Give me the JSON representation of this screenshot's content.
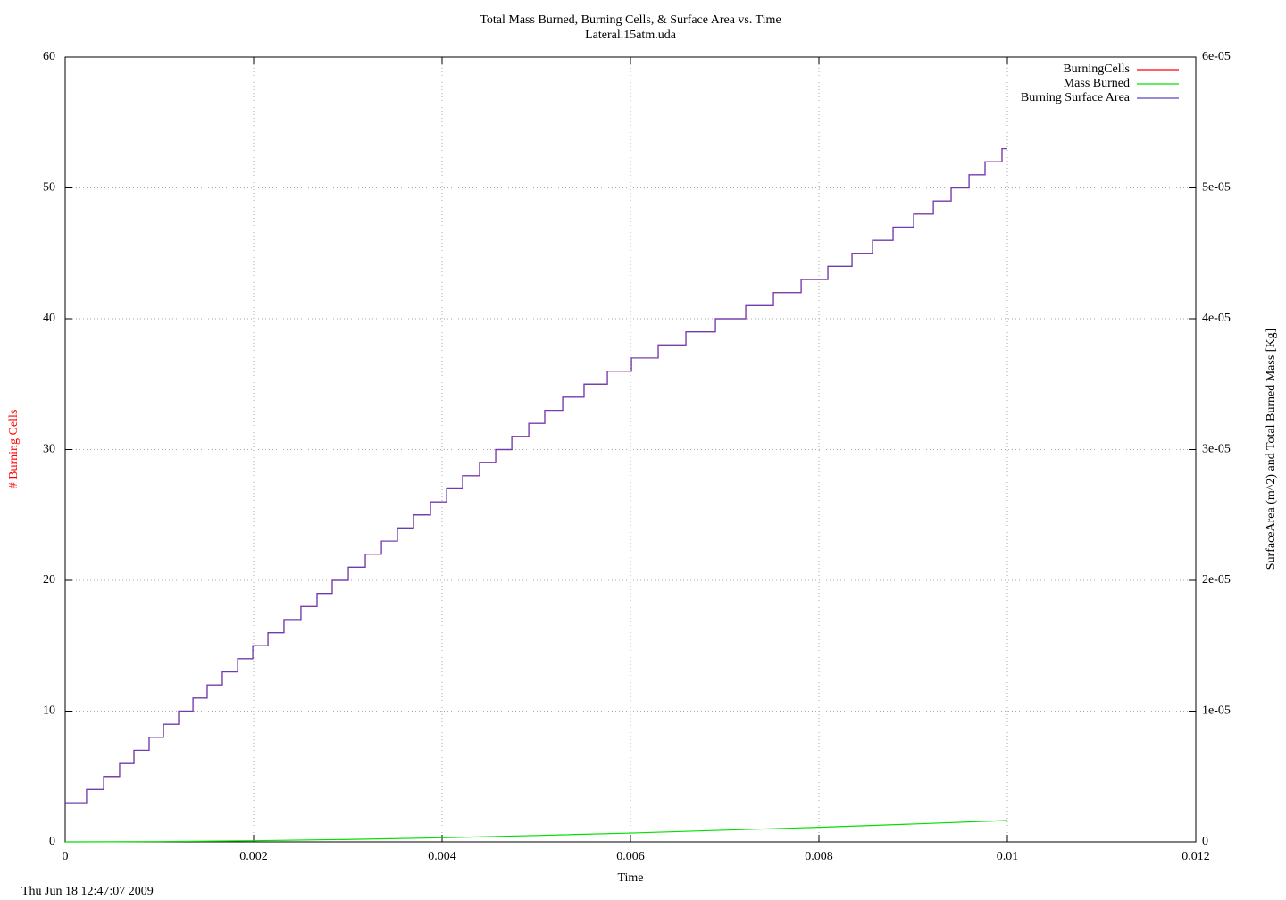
{
  "chart_data": {
    "type": "line",
    "title": "Total Mass Burned, Burning Cells, & Surface Area vs. Time",
    "subtitle": "Lateral.15atm.uda",
    "x_label": "Time",
    "y_label": "# Burning Cells",
    "y_label_color": "#ff0000",
    "y2_label": "SurfaceArea (m^2) and Total Burned Mass [Kg]",
    "footer": "Thu Jun 18 12:47:07 2009",
    "xlim": [
      0,
      0.012
    ],
    "xticks": [
      0,
      0.002,
      0.004,
      0.006,
      0.008,
      0.01,
      0.012
    ],
    "ylim": [
      0,
      60
    ],
    "yticks": [
      0,
      10,
      20,
      30,
      40,
      50,
      60
    ],
    "y2lim": [
      0,
      6e-05
    ],
    "y2ticks": [
      0,
      {
        "value": 1e-05,
        "label": "1e-05"
      },
      {
        "value": 2e-05,
        "label": "2e-05"
      },
      {
        "value": 3e-05,
        "label": "3e-05"
      },
      {
        "value": 4e-05,
        "label": "4e-05"
      },
      {
        "value": 5e-05,
        "label": "5e-05"
      },
      {
        "value": 6e-05,
        "label": "6e-05"
      }
    ],
    "grid": true,
    "legend": "top-right",
    "series": [
      {
        "name": "BurningCells",
        "color": "#ff0000",
        "style": "steps",
        "x": [
          0,
          0.000227,
          0.000408,
          0.000578,
          0.00073,
          0.000891,
          0.001043,
          0.001204,
          0.001356,
          0.001507,
          0.001668,
          0.00183,
          0.001991,
          0.002152,
          0.002322,
          0.002502,
          0.002673,
          0.002834,
          0.003005,
          0.003185,
          0.003356,
          0.003526,
          0.003697,
          0.003877,
          0.004048,
          0.004218,
          0.004398,
          0.004569,
          0.00474,
          0.00492,
          0.00509,
          0.00528,
          0.005507,
          0.005754,
          0.00601,
          0.006294,
          0.006588,
          0.006901,
          0.007223,
          0.007517,
          0.007811,
          0.008095,
          0.008351,
          0.008569,
          0.008787,
          0.009005,
          0.009214,
          0.009403,
          0.009593,
          0.009763,
          0.009943,
          0.01
        ],
        "values": [
          3,
          4,
          5,
          6,
          7,
          8,
          9,
          10,
          11,
          12,
          13,
          14,
          15,
          16,
          17,
          18,
          19,
          20,
          21,
          22,
          23,
          24,
          25,
          26,
          27,
          28,
          29,
          30,
          31,
          32,
          33,
          34,
          35,
          36,
          37,
          38,
          39,
          40,
          41,
          42,
          43,
          44,
          45,
          46,
          47,
          48,
          49,
          50,
          51,
          52,
          53,
          53
        ]
      },
      {
        "name": "Mass Burned",
        "color": "#00e000",
        "style": "line",
        "axis": "y2",
        "x": [
          0,
          0.001,
          0.002,
          0.003,
          0.004,
          0.005,
          0.006,
          0.007,
          0.008,
          0.009,
          0.01
        ],
        "values": [
          0,
          2e-08,
          9e-08,
          1.9e-07,
          3.2e-07,
          4.9e-07,
          6.8e-07,
          9e-07,
          1.12e-06,
          1.37e-06,
          1.64e-06
        ]
      },
      {
        "name": "Burning Surface Area",
        "color": "#6040c0",
        "style": "steps",
        "axis": "y2",
        "x": [
          0,
          0.000227,
          0.000408,
          0.000578,
          0.00073,
          0.000891,
          0.001043,
          0.001204,
          0.001356,
          0.001507,
          0.001668,
          0.00183,
          0.001991,
          0.002152,
          0.002322,
          0.002502,
          0.002673,
          0.002834,
          0.003005,
          0.003185,
          0.003356,
          0.003526,
          0.003697,
          0.003877,
          0.004048,
          0.004218,
          0.004398,
          0.004569,
          0.00474,
          0.00492,
          0.00509,
          0.00528,
          0.005507,
          0.005754,
          0.00601,
          0.006294,
          0.006588,
          0.006901,
          0.007223,
          0.007517,
          0.007811,
          0.008095,
          0.008351,
          0.008569,
          0.008787,
          0.009005,
          0.009214,
          0.009403,
          0.009593,
          0.009763,
          0.009943,
          0.01
        ],
        "values": [
          3e-06,
          4e-06,
          5e-06,
          6e-06,
          7e-06,
          8e-06,
          9e-06,
          1e-05,
          1.1e-05,
          1.2e-05,
          1.3e-05,
          1.4e-05,
          1.5e-05,
          1.6e-05,
          1.7e-05,
          1.8e-05,
          1.9e-05,
          2e-05,
          2.1e-05,
          2.2e-05,
          2.3e-05,
          2.4e-05,
          2.5e-05,
          2.6e-05,
          2.7e-05,
          2.8e-05,
          2.9e-05,
          3e-05,
          3.1e-05,
          3.2e-05,
          3.3e-05,
          3.4e-05,
          3.5e-05,
          3.6e-05,
          3.7e-05,
          3.8e-05,
          3.9e-05,
          4e-05,
          4.1e-05,
          4.2e-05,
          4.3e-05,
          4.4e-05,
          4.5e-05,
          4.6e-05,
          4.7e-05,
          4.8e-05,
          4.9e-05,
          5e-05,
          5.1e-05,
          5.2e-05,
          5.3e-05,
          5.3e-05
        ]
      }
    ]
  }
}
